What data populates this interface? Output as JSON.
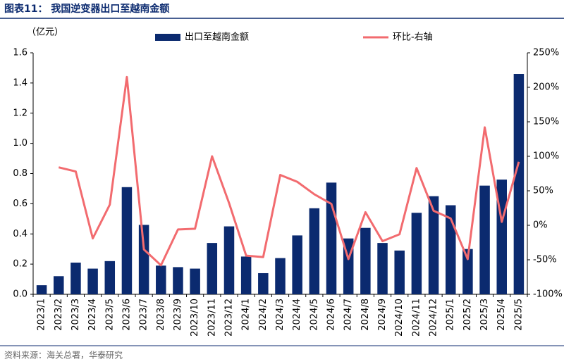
{
  "title": "图表11： 我国逆变器出口至越南金额",
  "source": "资料来源：海关总署，华泰研究",
  "chart_data": {
    "type": "bar_line",
    "y_unit_label": "（亿元）",
    "categories": [
      "2023/1",
      "2023/2",
      "2023/3",
      "2023/4",
      "2023/5",
      "2023/6",
      "2023/7",
      "2023/8",
      "2023/9",
      "2023/10",
      "2023/11",
      "2023/12",
      "2024/1",
      "2024/2",
      "2024/3",
      "2024/4",
      "2024/5",
      "2024/6",
      "2024/7",
      "2024/8",
      "2024/9",
      "2024/10",
      "2024/11",
      "2024/12",
      "2025/1",
      "2025/2",
      "2025/3",
      "2025/4",
      "2025/5"
    ],
    "series": [
      {
        "name": "出口至越南金额",
        "type": "bar",
        "color": "#0b2a6f",
        "values": [
          0.06,
          0.12,
          0.21,
          0.17,
          0.22,
          0.71,
          0.46,
          0.19,
          0.18,
          0.17,
          0.34,
          0.45,
          0.25,
          0.14,
          0.24,
          0.39,
          0.57,
          0.74,
          0.37,
          0.44,
          0.34,
          0.29,
          0.54,
          0.65,
          0.59,
          0.3,
          0.72,
          0.76,
          1.46
        ]
      },
      {
        "name": "环比-右轴",
        "type": "line",
        "axis": "y2",
        "color": "#f26b6f",
        "values": [
          null,
          84,
          78,
          -19,
          30,
          215,
          -35,
          -58,
          -6,
          -5,
          100,
          32,
          -44,
          -46,
          73,
          63,
          45,
          31,
          -49,
          19,
          -23,
          -13,
          83,
          21,
          10,
          -49,
          142,
          5,
          92
        ]
      }
    ],
    "ylim": [
      0,
      1.6
    ],
    "yticks": [
      {
        "value": 0,
        "label": "0.0"
      },
      0.2,
      0.4,
      0.6,
      0.8,
      {
        "value": 1,
        "label": "1.0"
      },
      1.2,
      1.4,
      1.6
    ],
    "y2lim": [
      -100,
      250
    ],
    "y2ticks": [
      {
        "value": -100,
        "label": "-100%"
      },
      {
        "value": -50,
        "label": "-50%"
      },
      {
        "value": 0,
        "label": "0%"
      },
      {
        "value": 50,
        "label": "50%"
      },
      {
        "value": 100,
        "label": "100%"
      },
      {
        "value": 150,
        "label": "150%"
      },
      {
        "value": 200,
        "label": "200%"
      },
      {
        "value": 250,
        "label": "250%"
      }
    ]
  }
}
